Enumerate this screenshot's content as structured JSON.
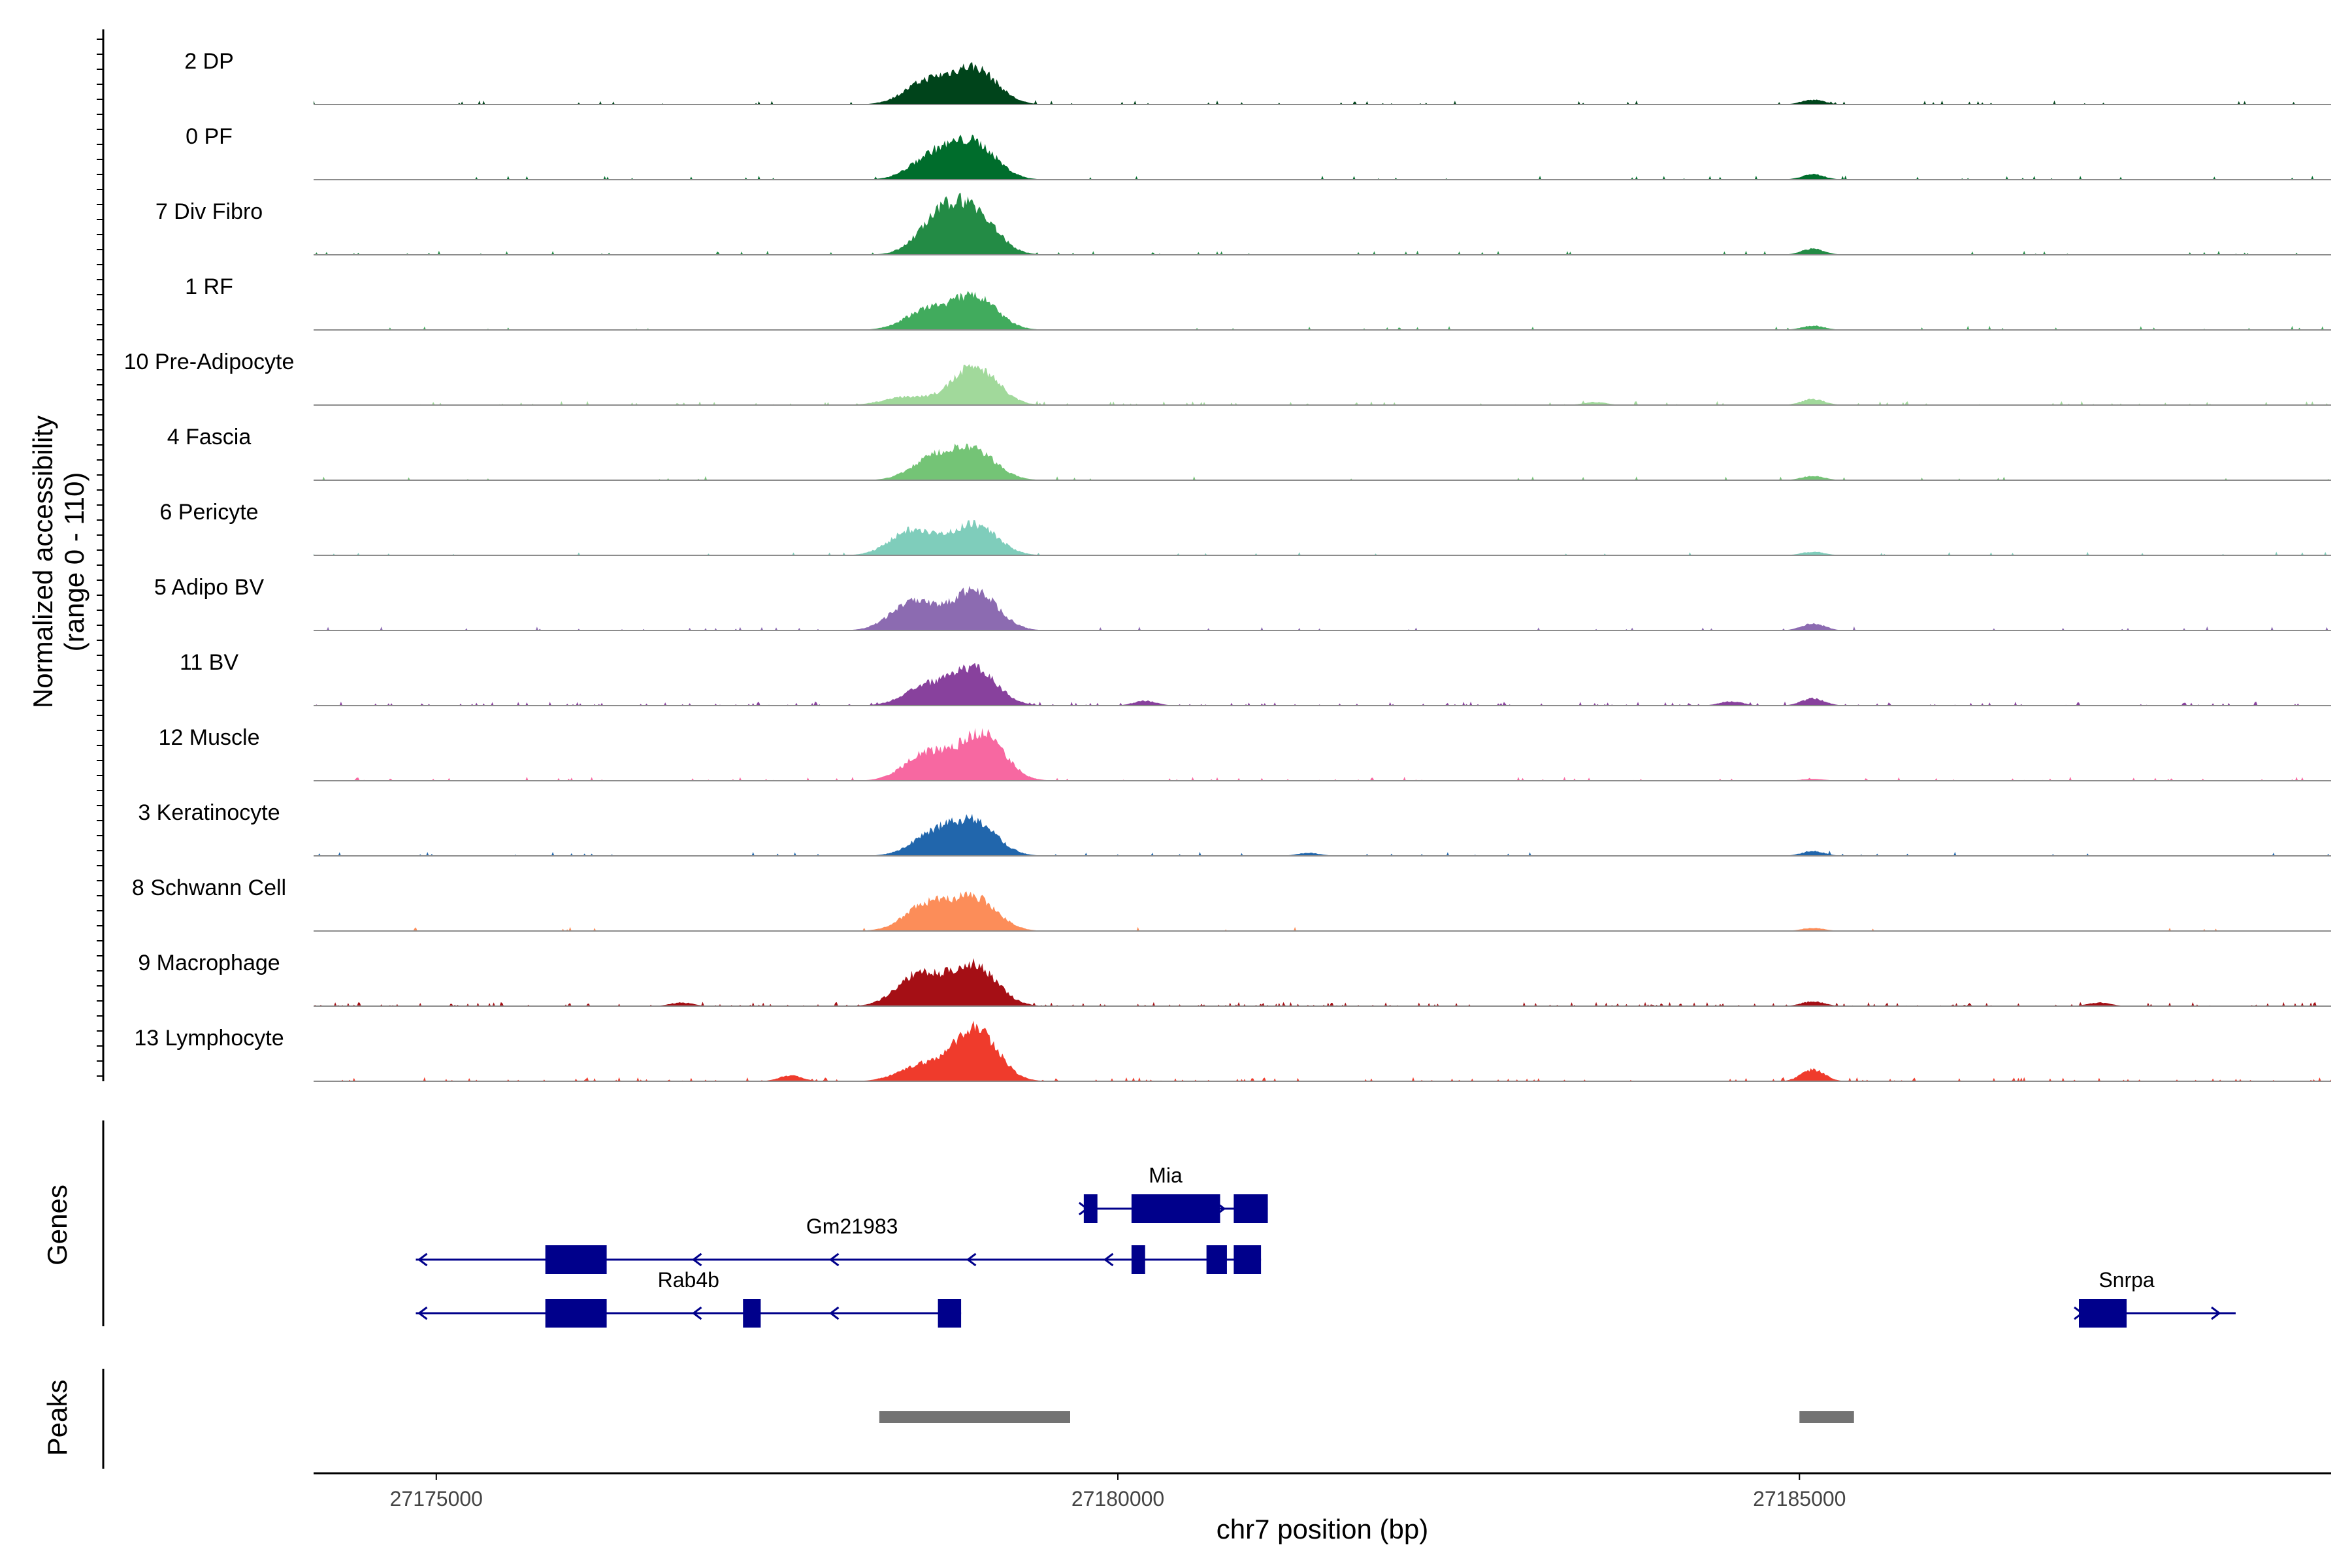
{
  "chart_data": {
    "type": "area",
    "title": "",
    "region": {
      "chrom": "chr7",
      "start": 27174100,
      "end": 27188900
    },
    "ylabel_line1": "Normalized accessibility",
    "ylabel_line2": "(range 0 - 110)",
    "ylim": [
      0,
      110
    ],
    "xlabel": "chr7 position (bp)",
    "x_ticks": [
      {
        "value": 27175000,
        "label": "27175000"
      },
      {
        "value": 27180000,
        "label": "27180000"
      },
      {
        "value": 27185000,
        "label": "27185000"
      }
    ],
    "tracks": [
      {
        "name": "2 DP",
        "color": "#00441b",
        "peaks": [
          [
            27178600,
            38
          ],
          [
            27178950,
            60
          ]
        ],
        "side_peaks": [
          [
            27185100,
            8
          ]
        ],
        "noise": 0.03,
        "spread": 0.0
      },
      {
        "name": "0 PF",
        "color": "#006d2c",
        "peaks": [
          [
            27178650,
            40
          ],
          [
            27178950,
            58
          ]
        ],
        "side_peaks": [
          [
            27185100,
            9
          ]
        ],
        "noise": 0.03,
        "spread": 0.0
      },
      {
        "name": "7 Div Fibro",
        "color": "#238b45",
        "peaks": [
          [
            27178700,
            60
          ],
          [
            27178950,
            64
          ]
        ],
        "side_peaks": [
          [
            27185100,
            10
          ]
        ],
        "noise": 0.03,
        "spread": 0.0
      },
      {
        "name": "1 RF",
        "color": "#41ab5d",
        "peaks": [
          [
            27178600,
            32
          ],
          [
            27178950,
            55
          ]
        ],
        "side_peaks": [
          [
            27185100,
            7
          ]
        ],
        "noise": 0.02,
        "spread": 0.0
      },
      {
        "name": "10 Pre-Adipocyte",
        "color": "#a1d99b",
        "peaks": [
          [
            27178450,
            14
          ],
          [
            27178950,
            66
          ]
        ],
        "side_peaks": [
          [
            27185100,
            10
          ],
          [
            27183500,
            5
          ]
        ],
        "noise": 0.05,
        "spread": 0.05
      },
      {
        "name": "4 Fascia",
        "color": "#74c476",
        "peaks": [
          [
            27178650,
            36
          ],
          [
            27178950,
            46
          ]
        ],
        "side_peaks": [
          [
            27185100,
            7
          ]
        ],
        "noise": 0.02,
        "spread": 0.0
      },
      {
        "name": "6 Pericyte",
        "color": "#7fcdbb",
        "peaks": [
          [
            27178500,
            44
          ],
          [
            27178950,
            52
          ]
        ],
        "side_peaks": [
          [
            27185100,
            6
          ]
        ],
        "noise": 0.02,
        "spread": 0.0
      },
      {
        "name": "5 Adipo BV",
        "color": "#8c6bb1",
        "peaks": [
          [
            27178500,
            48
          ],
          [
            27178950,
            68
          ]
        ],
        "side_peaks": [
          [
            27185100,
            12
          ]
        ],
        "noise": 0.03,
        "spread": 0.0
      },
      {
        "name": "11 BV",
        "color": "#88419d",
        "peaks": [
          [
            27178600,
            32
          ],
          [
            27178950,
            60
          ]
        ],
        "side_peaks": [
          [
            27185100,
            12
          ],
          [
            27184500,
            7
          ],
          [
            27180200,
            8
          ]
        ],
        "noise": 0.08,
        "spread": 0.1
      },
      {
        "name": "12 Muscle",
        "color": "#f768a1",
        "peaks": [
          [
            27178600,
            46
          ],
          [
            27179000,
            78
          ]
        ],
        "side_peaks": [
          [
            27185100,
            3
          ]
        ],
        "noise": 0.04,
        "spread": 0.05
      },
      {
        "name": "3 Keratinocyte",
        "color": "#2166ac",
        "peaks": [
          [
            27178650,
            36
          ],
          [
            27178950,
            54
          ]
        ],
        "side_peaks": [
          [
            27185100,
            8
          ],
          [
            27181400,
            5
          ]
        ],
        "noise": 0.03,
        "spread": 0.0
      },
      {
        "name": "8 Schwann Cell",
        "color": "#fc8d59",
        "peaks": [
          [
            27178600,
            44
          ],
          [
            27178950,
            54
          ]
        ],
        "side_peaks": [
          [
            27185100,
            5
          ]
        ],
        "noise": 0.02,
        "spread": 0.0
      },
      {
        "name": "9 Macrophage",
        "color": "#a50f15",
        "peaks": [
          [
            27178550,
            56
          ],
          [
            27178950,
            68
          ]
        ],
        "side_peaks": [
          [
            27185100,
            8
          ],
          [
            27187200,
            6
          ],
          [
            27176800,
            6
          ]
        ],
        "noise": 0.1,
        "spread": 0.12
      },
      {
        "name": "13 Lymphocyte",
        "color": "#ef3b2c",
        "peaks": [
          [
            27178550,
            26
          ],
          [
            27178950,
            90
          ]
        ],
        "side_peaks": [
          [
            27185100,
            20
          ],
          [
            27177600,
            10
          ]
        ],
        "noise": 0.08,
        "spread": 0.06
      }
    ],
    "genes_title": "Genes",
    "gene_color": "#00008b",
    "genes": [
      {
        "name": "Mia",
        "row": 0,
        "strand": "+",
        "label_at": 27180350,
        "start": 27179750,
        "end": 27181100,
        "exons": [
          [
            27179750,
            27179850
          ],
          [
            27180100,
            27180750
          ],
          [
            27180850,
            27181100
          ]
        ]
      },
      {
        "name": "Gm21983",
        "row": 1,
        "strand": "-",
        "label_at": 27178050,
        "start": 27174850,
        "end": 27181050,
        "exons": [
          [
            27175800,
            27176250
          ],
          [
            27180100,
            27180200
          ],
          [
            27180650,
            27180800
          ],
          [
            27180850,
            27181050
          ]
        ]
      },
      {
        "name": "Rab4b",
        "row": 2,
        "strand": "-",
        "label_at": 27176850,
        "start": 27174850,
        "end": 27178850,
        "exons": [
          [
            27175800,
            27176250
          ],
          [
            27177250,
            27177380
          ],
          [
            27178680,
            27178850
          ]
        ]
      },
      {
        "name": "Snrpa",
        "row": 2,
        "strand": "+",
        "label_at": 27187400,
        "start": 27187050,
        "end": 27188200,
        "exons": [
          [
            27187050,
            27187400
          ]
        ]
      }
    ],
    "peaks_title": "Peaks",
    "peak_color": "#737373",
    "peak_regions": [
      [
        27178250,
        27179650
      ],
      [
        27185000,
        27185400
      ]
    ]
  }
}
